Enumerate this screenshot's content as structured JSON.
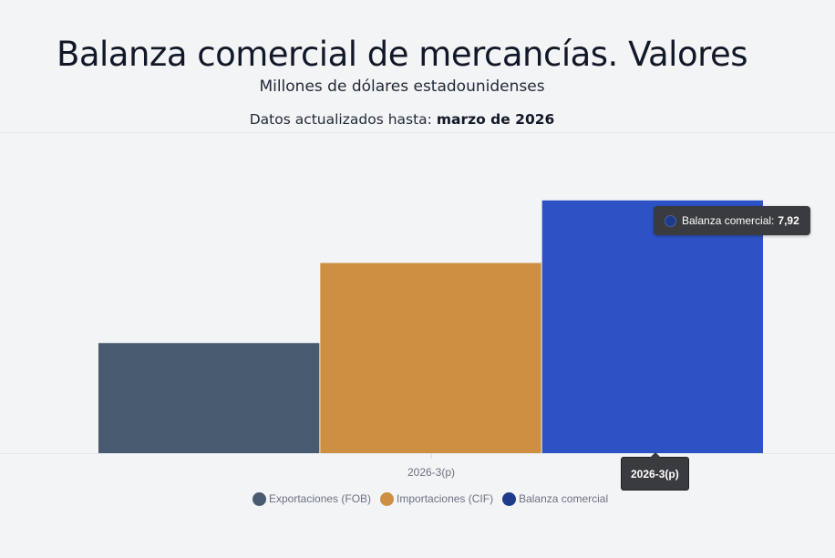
{
  "header": {
    "title": "Balanza comercial de mercancías. Valores",
    "subtitle": "Millones de dólares estadounidenses",
    "updated_prefix": "Datos actualizados hasta: ",
    "updated_value": "marzo de 2026"
  },
  "chart_data": {
    "type": "bar",
    "categories": [
      "2026-3(p)"
    ],
    "series": [
      {
        "name": "Exportaciones (FOB)",
        "color": "#475a70",
        "values": [
          3.45
        ]
      },
      {
        "name": "Importaciones (CIF)",
        "color": "#cd9043",
        "values": [
          5.96
        ]
      },
      {
        "name": "Balanza comercial",
        "color": "#2c52c6",
        "values": [
          7.92
        ]
      }
    ],
    "ylim": [
      0,
      10
    ],
    "grid": false,
    "legend_position": "bottom"
  },
  "tooltip": {
    "series_label": "Balanza comercial:",
    "value": "7,92",
    "category": "2026-3(p)",
    "dot_color": "#1e3a8a"
  },
  "legend": {
    "items": [
      {
        "label": "Exportaciones (FOB)",
        "color": "#475a70"
      },
      {
        "label": "Importaciones (CIF)",
        "color": "#cd9043"
      },
      {
        "label": "Balanza comercial",
        "color": "#1e3a8a"
      }
    ]
  }
}
